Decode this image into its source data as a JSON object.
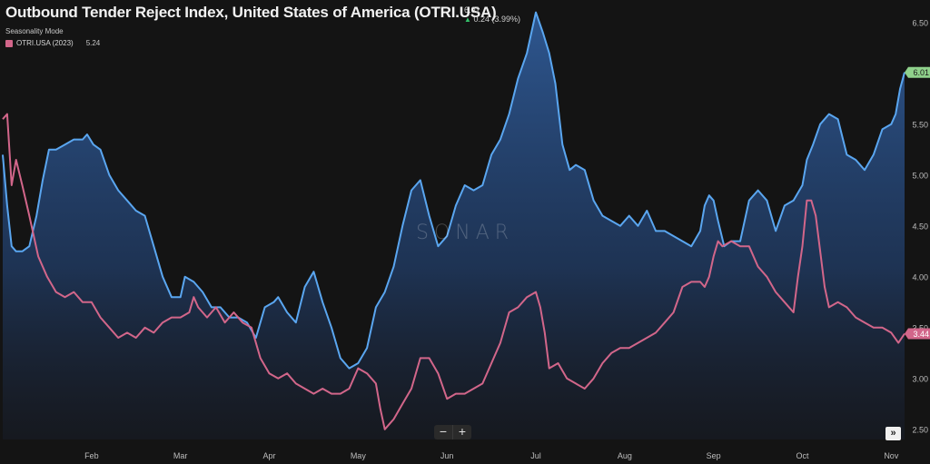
{
  "header": {
    "title": "Outbound Tender Reject Index, United States of America (OTRI.USA)",
    "value": "6.01",
    "change": "0.24 (3.99%)",
    "change_direction": "up",
    "mode": "Seasonality Mode"
  },
  "legend": {
    "series_label": "OTRI.USA (2023)",
    "series_value": "5.24"
  },
  "watermark": "SONAR",
  "controls": {
    "zoom_out": "−",
    "zoom_in": "+",
    "expand": "»"
  },
  "colors": {
    "background": "#141414",
    "current_line": "#5aa6f0",
    "prior_line": "#d2668a",
    "current_badge": "#8fd18b",
    "prior_badge": "#d2668a"
  },
  "chart_data": {
    "type": "area",
    "x_unit": "months",
    "xlim": [
      0,
      10.15
    ],
    "ylim": [
      2.4,
      6.65
    ],
    "x_ticks": [
      {
        "label": "Feb",
        "x": 1
      },
      {
        "label": "Mar",
        "x": 2
      },
      {
        "label": "Apr",
        "x": 3
      },
      {
        "label": "May",
        "x": 4
      },
      {
        "label": "Jun",
        "x": 5
      },
      {
        "label": "Jul",
        "x": 6
      },
      {
        "label": "Aug",
        "x": 7
      },
      {
        "label": "Sep",
        "x": 8
      },
      {
        "label": "Oct",
        "x": 9
      },
      {
        "label": "Nov",
        "x": 10
      }
    ],
    "y_ticks": [
      "2.50",
      "3.00",
      "3.50",
      "4.00",
      "4.50",
      "5.00",
      "5.50",
      "6.00",
      "6.50"
    ],
    "y_tick_values": [
      2.5,
      3.0,
      3.5,
      4.0,
      4.5,
      5.0,
      5.5,
      6.0,
      6.5
    ],
    "series": [
      {
        "key": "current",
        "end_label": "6.01",
        "fill": true,
        "points": [
          [
            0,
            5.2
          ],
          [
            0.05,
            4.7
          ],
          [
            0.1,
            4.3
          ],
          [
            0.15,
            4.25
          ],
          [
            0.22,
            4.25
          ],
          [
            0.3,
            4.3
          ],
          [
            0.38,
            4.6
          ],
          [
            0.45,
            4.95
          ],
          [
            0.52,
            5.25
          ],
          [
            0.6,
            5.25
          ],
          [
            0.7,
            5.3
          ],
          [
            0.8,
            5.35
          ],
          [
            0.9,
            5.35
          ],
          [
            0.95,
            5.4
          ],
          [
            1.02,
            5.3
          ],
          [
            1.1,
            5.25
          ],
          [
            1.2,
            5.0
          ],
          [
            1.3,
            4.85
          ],
          [
            1.4,
            4.75
          ],
          [
            1.5,
            4.65
          ],
          [
            1.6,
            4.6
          ],
          [
            1.7,
            4.3
          ],
          [
            1.8,
            4.0
          ],
          [
            1.9,
            3.8
          ],
          [
            2.0,
            3.8
          ],
          [
            2.05,
            4.0
          ],
          [
            2.15,
            3.95
          ],
          [
            2.25,
            3.85
          ],
          [
            2.35,
            3.7
          ],
          [
            2.45,
            3.7
          ],
          [
            2.55,
            3.6
          ],
          [
            2.65,
            3.6
          ],
          [
            2.75,
            3.55
          ],
          [
            2.85,
            3.4
          ],
          [
            2.95,
            3.7
          ],
          [
            3.05,
            3.75
          ],
          [
            3.1,
            3.8
          ],
          [
            3.2,
            3.65
          ],
          [
            3.3,
            3.55
          ],
          [
            3.4,
            3.9
          ],
          [
            3.5,
            4.05
          ],
          [
            3.55,
            3.9
          ],
          [
            3.6,
            3.75
          ],
          [
            3.7,
            3.5
          ],
          [
            3.8,
            3.2
          ],
          [
            3.9,
            3.1
          ],
          [
            4.0,
            3.15
          ],
          [
            4.1,
            3.3
          ],
          [
            4.2,
            3.7
          ],
          [
            4.3,
            3.85
          ],
          [
            4.4,
            4.1
          ],
          [
            4.5,
            4.5
          ],
          [
            4.6,
            4.85
          ],
          [
            4.7,
            4.95
          ],
          [
            4.8,
            4.6
          ],
          [
            4.9,
            4.3
          ],
          [
            5.0,
            4.4
          ],
          [
            5.1,
            4.7
          ],
          [
            5.2,
            4.9
          ],
          [
            5.3,
            4.85
          ],
          [
            5.4,
            4.9
          ],
          [
            5.5,
            5.2
          ],
          [
            5.6,
            5.35
          ],
          [
            5.7,
            5.6
          ],
          [
            5.8,
            5.95
          ],
          [
            5.9,
            6.2
          ],
          [
            6.0,
            6.6
          ],
          [
            6.08,
            6.4
          ],
          [
            6.15,
            6.2
          ],
          [
            6.22,
            5.9
          ],
          [
            6.3,
            5.3
          ],
          [
            6.38,
            5.05
          ],
          [
            6.45,
            5.1
          ],
          [
            6.55,
            5.05
          ],
          [
            6.65,
            4.75
          ],
          [
            6.75,
            4.6
          ],
          [
            6.85,
            4.55
          ],
          [
            6.95,
            4.5
          ],
          [
            7.05,
            4.6
          ],
          [
            7.15,
            4.5
          ],
          [
            7.25,
            4.65
          ],
          [
            7.35,
            4.45
          ],
          [
            7.45,
            4.45
          ],
          [
            7.55,
            4.4
          ],
          [
            7.65,
            4.35
          ],
          [
            7.75,
            4.3
          ],
          [
            7.85,
            4.45
          ],
          [
            7.9,
            4.7
          ],
          [
            7.95,
            4.8
          ],
          [
            8.0,
            4.75
          ],
          [
            8.05,
            4.55
          ],
          [
            8.12,
            4.3
          ],
          [
            8.2,
            4.35
          ],
          [
            8.3,
            4.35
          ],
          [
            8.4,
            4.75
          ],
          [
            8.5,
            4.85
          ],
          [
            8.6,
            4.75
          ],
          [
            8.7,
            4.45
          ],
          [
            8.8,
            4.7
          ],
          [
            8.9,
            4.75
          ],
          [
            9.0,
            4.9
          ],
          [
            9.05,
            5.15
          ],
          [
            9.12,
            5.3
          ],
          [
            9.2,
            5.5
          ],
          [
            9.3,
            5.6
          ],
          [
            9.4,
            5.55
          ],
          [
            9.5,
            5.2
          ],
          [
            9.6,
            5.15
          ],
          [
            9.7,
            5.05
          ],
          [
            9.8,
            5.2
          ],
          [
            9.9,
            5.45
          ],
          [
            10.0,
            5.5
          ],
          [
            10.05,
            5.6
          ],
          [
            10.1,
            5.85
          ],
          [
            10.15,
            6.01
          ]
        ]
      },
      {
        "key": "prior",
        "end_label": "3.44",
        "fill": false,
        "points": [
          [
            0,
            5.55
          ],
          [
            0.05,
            5.6
          ],
          [
            0.1,
            4.9
          ],
          [
            0.15,
            5.15
          ],
          [
            0.22,
            4.9
          ],
          [
            0.3,
            4.6
          ],
          [
            0.4,
            4.2
          ],
          [
            0.5,
            4.0
          ],
          [
            0.6,
            3.85
          ],
          [
            0.7,
            3.8
          ],
          [
            0.8,
            3.85
          ],
          [
            0.9,
            3.75
          ],
          [
            1.0,
            3.75
          ],
          [
            1.1,
            3.6
          ],
          [
            1.2,
            3.5
          ],
          [
            1.3,
            3.4
          ],
          [
            1.4,
            3.45
          ],
          [
            1.5,
            3.4
          ],
          [
            1.6,
            3.5
          ],
          [
            1.7,
            3.45
          ],
          [
            1.8,
            3.55
          ],
          [
            1.9,
            3.6
          ],
          [
            2.0,
            3.6
          ],
          [
            2.1,
            3.65
          ],
          [
            2.15,
            3.8
          ],
          [
            2.2,
            3.7
          ],
          [
            2.3,
            3.6
          ],
          [
            2.4,
            3.7
          ],
          [
            2.5,
            3.55
          ],
          [
            2.6,
            3.65
          ],
          [
            2.7,
            3.55
          ],
          [
            2.8,
            3.5
          ],
          [
            2.9,
            3.2
          ],
          [
            3.0,
            3.05
          ],
          [
            3.1,
            3.0
          ],
          [
            3.2,
            3.05
          ],
          [
            3.3,
            2.95
          ],
          [
            3.4,
            2.9
          ],
          [
            3.5,
            2.85
          ],
          [
            3.6,
            2.9
          ],
          [
            3.7,
            2.85
          ],
          [
            3.8,
            2.85
          ],
          [
            3.9,
            2.9
          ],
          [
            4.0,
            3.1
          ],
          [
            4.1,
            3.05
          ],
          [
            4.2,
            2.95
          ],
          [
            4.25,
            2.7
          ],
          [
            4.3,
            2.5
          ],
          [
            4.35,
            2.55
          ],
          [
            4.4,
            2.6
          ],
          [
            4.5,
            2.75
          ],
          [
            4.6,
            2.9
          ],
          [
            4.7,
            3.2
          ],
          [
            4.8,
            3.2
          ],
          [
            4.9,
            3.05
          ],
          [
            5.0,
            2.8
          ],
          [
            5.1,
            2.85
          ],
          [
            5.2,
            2.85
          ],
          [
            5.3,
            2.9
          ],
          [
            5.4,
            2.95
          ],
          [
            5.5,
            3.15
          ],
          [
            5.6,
            3.35
          ],
          [
            5.7,
            3.65
          ],
          [
            5.8,
            3.7
          ],
          [
            5.9,
            3.8
          ],
          [
            6.0,
            3.85
          ],
          [
            6.05,
            3.7
          ],
          [
            6.1,
            3.45
          ],
          [
            6.15,
            3.1
          ],
          [
            6.25,
            3.15
          ],
          [
            6.35,
            3.0
          ],
          [
            6.45,
            2.95
          ],
          [
            6.55,
            2.9
          ],
          [
            6.65,
            3.0
          ],
          [
            6.75,
            3.15
          ],
          [
            6.85,
            3.25
          ],
          [
            6.95,
            3.3
          ],
          [
            7.05,
            3.3
          ],
          [
            7.15,
            3.35
          ],
          [
            7.25,
            3.4
          ],
          [
            7.35,
            3.45
          ],
          [
            7.45,
            3.55
          ],
          [
            7.55,
            3.65
          ],
          [
            7.65,
            3.9
          ],
          [
            7.75,
            3.95
          ],
          [
            7.85,
            3.95
          ],
          [
            7.9,
            3.9
          ],
          [
            7.95,
            4.0
          ],
          [
            8.0,
            4.2
          ],
          [
            8.05,
            4.35
          ],
          [
            8.1,
            4.3
          ],
          [
            8.2,
            4.35
          ],
          [
            8.3,
            4.3
          ],
          [
            8.4,
            4.3
          ],
          [
            8.5,
            4.1
          ],
          [
            8.6,
            4.0
          ],
          [
            8.7,
            3.85
          ],
          [
            8.8,
            3.75
          ],
          [
            8.9,
            3.65
          ],
          [
            8.95,
            4.0
          ],
          [
            9.0,
            4.3
          ],
          [
            9.05,
            4.75
          ],
          [
            9.1,
            4.75
          ],
          [
            9.15,
            4.6
          ],
          [
            9.2,
            4.25
          ],
          [
            9.25,
            3.9
          ],
          [
            9.3,
            3.7
          ],
          [
            9.4,
            3.75
          ],
          [
            9.5,
            3.7
          ],
          [
            9.6,
            3.6
          ],
          [
            9.7,
            3.55
          ],
          [
            9.8,
            3.5
          ],
          [
            9.9,
            3.5
          ],
          [
            10.0,
            3.45
          ],
          [
            10.08,
            3.35
          ],
          [
            10.15,
            3.44
          ]
        ]
      }
    ]
  }
}
